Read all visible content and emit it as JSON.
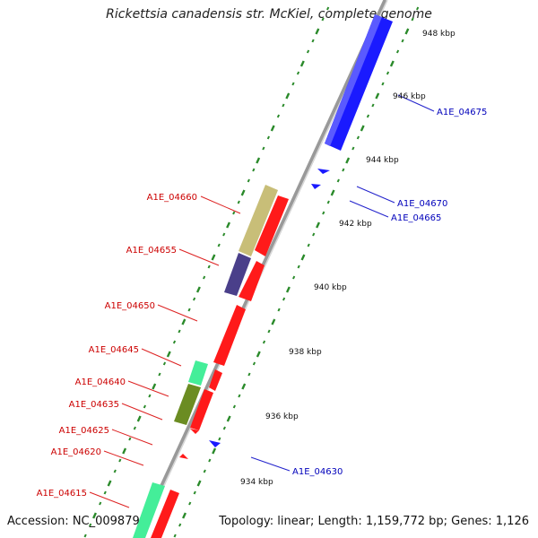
{
  "title": "Rickettsia canadensis str. McKiel, complete genome",
  "footer": {
    "accession": "Accession: NC_009879",
    "summary": "Topology: linear; Length: 1,159,772 bp; Genes: 1,126"
  },
  "colors": {
    "forward": "#ff0000",
    "reverse": "#0000ee",
    "forward_label": "#cc0000",
    "reverse_label": "#0000bb",
    "backbone": "#888888",
    "tick": "#228822"
  },
  "kbp_labels": [
    "934 kbp",
    "936 kbp",
    "938 kbp",
    "940 kbp",
    "942 kbp",
    "944 kbp",
    "946 kbp",
    "948 kbp"
  ],
  "forward_genes": [
    "A1E_04660",
    "A1E_04655",
    "A1E_04650",
    "A1E_04645",
    "A1E_04640",
    "A1E_04635",
    "A1E_04625",
    "A1E_04620",
    "A1E_04615"
  ],
  "reverse_genes": [
    "A1E_04675",
    "A1E_04670",
    "A1E_04665",
    "A1E_04630"
  ]
}
